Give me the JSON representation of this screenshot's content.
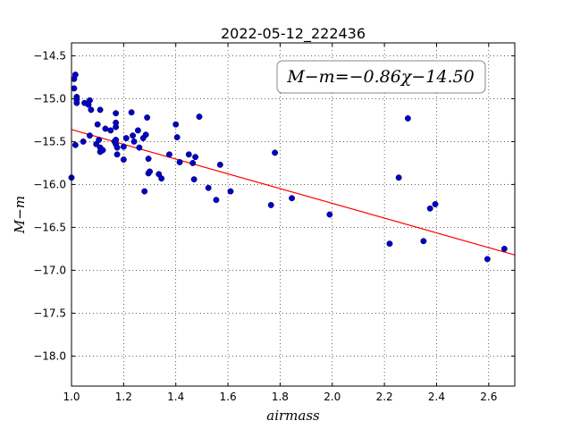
{
  "chart_data": {
    "type": "scatter",
    "title": "2022-05-12_222436",
    "xlabel": "airmass",
    "ylabel": "M−m",
    "xlim": [
      1.0,
      2.7
    ],
    "ylim": [
      -18.35,
      -14.35
    ],
    "xticks": [
      1.0,
      1.2,
      1.4,
      1.6,
      1.8,
      2.0,
      2.2,
      2.4,
      2.6
    ],
    "yticks": [
      -14.5,
      -15.0,
      -15.5,
      -16.0,
      -16.5,
      -17.0,
      -17.5,
      -18.0
    ],
    "xtick_labels": [
      "1.0",
      "1.2",
      "1.4",
      "1.6",
      "1.8",
      "2.0",
      "2.2",
      "2.4",
      "2.6"
    ],
    "ytick_labels": [
      "−14.5",
      "−15.0",
      "−15.5",
      "−16.0",
      "−16.5",
      "−17.0",
      "−17.5",
      "−18.0"
    ],
    "grid": true,
    "annotation": "M−m=−0.86χ−14.50",
    "fit": {
      "slope": -0.86,
      "intercept": -14.5,
      "color": "#ff0000"
    },
    "point_color": "#0000cc",
    "points": [
      [
        1.0,
        -15.92
      ],
      [
        1.01,
        -14.77
      ],
      [
        1.015,
        -14.72
      ],
      [
        1.01,
        -14.88
      ],
      [
        1.02,
        -14.98
      ],
      [
        1.02,
        -15.01
      ],
      [
        1.02,
        -15.05
      ],
      [
        1.015,
        -15.54
      ],
      [
        1.045,
        -15.5
      ],
      [
        1.05,
        -15.05
      ],
      [
        1.065,
        -15.07
      ],
      [
        1.07,
        -15.02
      ],
      [
        1.075,
        -15.13
      ],
      [
        1.07,
        -15.43
      ],
      [
        1.095,
        -15.53
      ],
      [
        1.1,
        -15.3
      ],
      [
        1.105,
        -15.48
      ],
      [
        1.11,
        -15.13
      ],
      [
        1.11,
        -15.57
      ],
      [
        1.11,
        -15.62
      ],
      [
        1.12,
        -15.6
      ],
      [
        1.13,
        -15.35
      ],
      [
        1.15,
        -15.37
      ],
      [
        1.165,
        -15.5
      ],
      [
        1.17,
        -15.17
      ],
      [
        1.17,
        -15.28
      ],
      [
        1.17,
        -15.33
      ],
      [
        1.17,
        -15.48
      ],
      [
        1.17,
        -15.53
      ],
      [
        1.175,
        -15.57
      ],
      [
        1.175,
        -15.65
      ],
      [
        1.2,
        -15.71
      ],
      [
        1.2,
        -15.56
      ],
      [
        1.21,
        -15.46
      ],
      [
        1.23,
        -15.16
      ],
      [
        1.235,
        -15.43
      ],
      [
        1.24,
        -15.5
      ],
      [
        1.255,
        -15.37
      ],
      [
        1.26,
        -15.57
      ],
      [
        1.275,
        -15.46
      ],
      [
        1.285,
        -15.42
      ],
      [
        1.28,
        -16.08
      ],
      [
        1.29,
        -15.22
      ],
      [
        1.295,
        -15.7
      ],
      [
        1.295,
        -15.87
      ],
      [
        1.3,
        -15.85
      ],
      [
        1.335,
        -15.88
      ],
      [
        1.345,
        -15.93
      ],
      [
        1.375,
        -15.65
      ],
      [
        1.4,
        -15.3
      ],
      [
        1.405,
        -15.45
      ],
      [
        1.415,
        -15.74
      ],
      [
        1.45,
        -15.65
      ],
      [
        1.465,
        -15.75
      ],
      [
        1.47,
        -15.94
      ],
      [
        1.475,
        -15.68
      ],
      [
        1.49,
        -15.21
      ],
      [
        1.525,
        -16.04
      ],
      [
        1.555,
        -16.18
      ],
      [
        1.57,
        -15.77
      ],
      [
        1.61,
        -16.08
      ],
      [
        1.765,
        -16.24
      ],
      [
        1.78,
        -15.63
      ],
      [
        1.845,
        -16.16
      ],
      [
        1.99,
        -16.35
      ],
      [
        2.22,
        -16.69
      ],
      [
        2.255,
        -15.92
      ],
      [
        2.29,
        -15.23
      ],
      [
        2.35,
        -16.66
      ],
      [
        2.375,
        -16.28
      ],
      [
        2.395,
        -16.23
      ],
      [
        2.595,
        -16.87
      ],
      [
        2.66,
        -16.75
      ]
    ]
  }
}
